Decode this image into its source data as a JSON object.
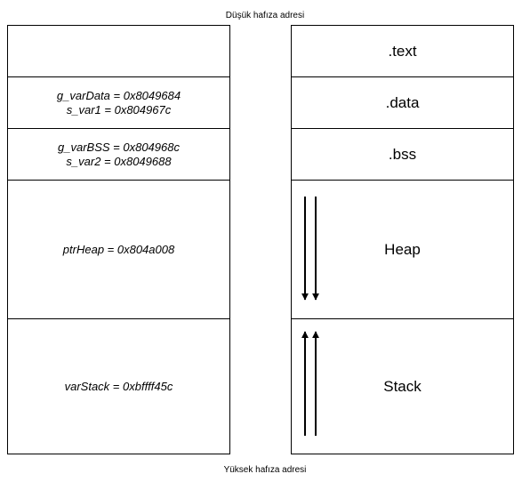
{
  "labels": {
    "low_address": "Düşük hafıza adresi",
    "high_address": "Yüksek hafıza adresi"
  },
  "variables": {
    "data_line1": "g_varData = 0x8049684",
    "data_line2": "s_var1 = 0x804967c",
    "bss_line1": "g_varBSS = 0x804968c",
    "bss_line2": "s_var2 = 0x8049688",
    "heap": "ptrHeap = 0x804a008",
    "stack": "varStack = 0xbffff45c"
  },
  "segments": {
    "text": ".text",
    "data": ".data",
    "bss": ".bss",
    "heap": "Heap",
    "stack": "Stack"
  },
  "growth": {
    "heap_direction": "down",
    "stack_direction": "up"
  }
}
